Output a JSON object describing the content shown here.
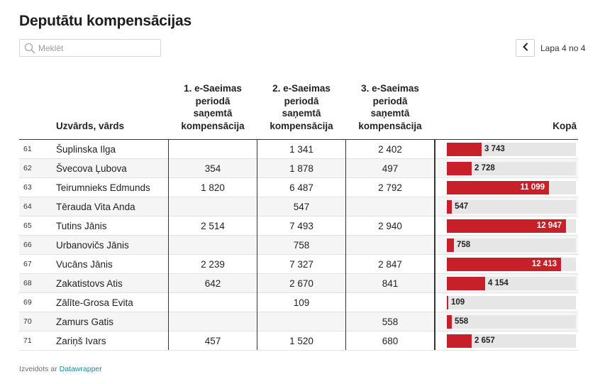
{
  "title": "Deputātu kompensācijas",
  "search": {
    "placeholder": "Meklēt",
    "value": ""
  },
  "pager": {
    "label": "Lapa 4 no 4"
  },
  "footer": {
    "prefix": "Izveidots ar",
    "link": "Datawrapper"
  },
  "colors": {
    "bar": "#c8202a",
    "bar_background": "#e6e6e6",
    "link": "#1f8a9e"
  },
  "chart_data": {
    "type": "table",
    "columns": [
      "",
      "Uzvārds, vārds",
      "1. e-Saeimas perioda saņemtā kompensācija",
      "2. e-Saeimas perioda saņemtā kompensācija",
      "3. e-Saeimas perioda saņemtā kompensācija",
      "Kopā"
    ],
    "header_lines": {
      "name": [
        "Uzvārds, vārds"
      ],
      "p1": [
        "1. e-Saeimas",
        "periodā",
        "saņemtā",
        "kompensācija"
      ],
      "p2": [
        "2. e-Saeimas",
        "periodā",
        "saņemtā",
        "kompensācija"
      ],
      "p3": [
        "3. e-Saeimas",
        "periodā",
        "saņemtā",
        "kompensācija"
      ],
      "total": [
        "Kopā"
      ]
    },
    "bar_max": 14000,
    "rows": [
      {
        "rank": "61",
        "name": "Šuplinska Ilga",
        "p1": "",
        "p2": "1 341",
        "p3": "2 402",
        "total": 3743,
        "total_label": "3 743"
      },
      {
        "rank": "62",
        "name": "Švecova Ļubova",
        "p1": "354",
        "p2": "1 878",
        "p3": "497",
        "total": 2728,
        "total_label": "2 728"
      },
      {
        "rank": "63",
        "name": "Teirumnieks Edmunds",
        "p1": "1 820",
        "p2": "6 487",
        "p3": "2 792",
        "total": 11099,
        "total_label": "11 099"
      },
      {
        "rank": "64",
        "name": "Tērauda Vita Anda",
        "p1": "",
        "p2": "547",
        "p3": "",
        "total": 547,
        "total_label": "547"
      },
      {
        "rank": "65",
        "name": "Tutins Jānis",
        "p1": "2 514",
        "p2": "7 493",
        "p3": "2 940",
        "total": 12947,
        "total_label": "12 947"
      },
      {
        "rank": "66",
        "name": "Urbanovičs Jānis",
        "p1": "",
        "p2": "758",
        "p3": "",
        "total": 758,
        "total_label": "758"
      },
      {
        "rank": "67",
        "name": "Vucāns Jānis",
        "p1": "2 239",
        "p2": "7 327",
        "p3": "2 847",
        "total": 12413,
        "total_label": "12 413"
      },
      {
        "rank": "68",
        "name": "Zakatistovs Atis",
        "p1": "642",
        "p2": "2 670",
        "p3": "841",
        "total": 4154,
        "total_label": "4 154"
      },
      {
        "rank": "69",
        "name": "Zālīte-Grosa Evita",
        "p1": "",
        "p2": "109",
        "p3": "",
        "total": 109,
        "total_label": "109"
      },
      {
        "rank": "70",
        "name": "Zamurs Gatis",
        "p1": "",
        "p2": "",
        "p3": "558",
        "total": 558,
        "total_label": "558"
      },
      {
        "rank": "71",
        "name": "Zariņš Ivars",
        "p1": "457",
        "p2": "1 520",
        "p3": "680",
        "total": 2657,
        "total_label": "2 657"
      }
    ]
  }
}
